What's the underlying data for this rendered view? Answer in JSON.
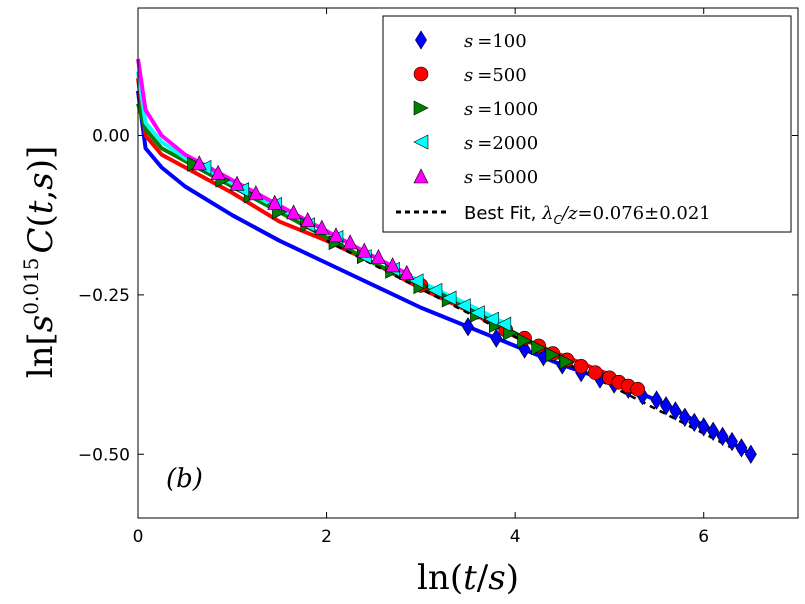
{
  "chart_data": {
    "type": "scatter",
    "title": "",
    "xlabel": "ln(t/s)",
    "ylabel": "ln[s^0.015 C(t,s)]",
    "xlim": [
      0,
      7
    ],
    "ylim": [
      -0.6,
      0.2
    ],
    "xticks": [
      0,
      2,
      4,
      6
    ],
    "yticks": [
      0.0,
      -0.25,
      -0.5
    ],
    "xtick_labels": [
      "0",
      "2",
      "4",
      "6"
    ],
    "ytick_labels": [
      "0.00",
      "−0.25",
      "−0.50"
    ],
    "annotation": "(b)",
    "legend_position": "top-right",
    "series": [
      {
        "name": "s=100",
        "label_var": "s",
        "label_eq": "=100",
        "marker": "diamond",
        "color": "#0000ff",
        "curve_start": 0.07,
        "x": [
          0.08,
          0.25,
          0.5,
          1.0,
          1.5,
          2.0,
          2.5,
          3.0,
          3.5,
          4.0,
          4.5,
          5.0,
          5.5,
          6.0,
          6.5
        ],
        "y": [
          -0.02,
          -0.05,
          -0.08,
          -0.125,
          -0.165,
          -0.2,
          -0.235,
          -0.27,
          -0.3,
          -0.33,
          -0.36,
          -0.385,
          -0.415,
          -0.455,
          -0.5
        ],
        "marker_x": [
          3.5,
          3.8,
          4.1,
          4.3,
          4.5,
          4.7,
          4.9,
          5.05,
          5.2,
          5.35,
          5.5,
          5.6,
          5.7,
          5.8,
          5.9,
          6.0,
          6.1,
          6.2,
          6.3,
          6.4,
          6.5
        ],
        "marker_y": [
          -0.3,
          -0.318,
          -0.335,
          -0.347,
          -0.36,
          -0.372,
          -0.382,
          -0.39,
          -0.398,
          -0.408,
          -0.415,
          -0.424,
          -0.432,
          -0.442,
          -0.45,
          -0.457,
          -0.464,
          -0.472,
          -0.48,
          -0.49,
          -0.5
        ]
      },
      {
        "name": "s=500",
        "label_var": "s",
        "label_eq": "=500",
        "marker": "circle",
        "color": "#ff0000",
        "curve_start": 0.09,
        "x": [
          0.08,
          0.25,
          0.5,
          1.0,
          1.5,
          2.0,
          2.5,
          3.0,
          3.5,
          4.0,
          4.5,
          5.0,
          5.3
        ],
        "y": [
          0.0,
          -0.03,
          -0.05,
          -0.09,
          -0.135,
          -0.165,
          -0.2,
          -0.24,
          -0.275,
          -0.315,
          -0.345,
          -0.375,
          -0.395
        ],
        "marker_x": [
          3.0,
          3.9,
          4.1,
          4.25,
          4.4,
          4.55,
          4.7,
          4.85,
          5.0,
          5.1,
          5.2,
          5.3
        ],
        "marker_y": [
          -0.235,
          -0.305,
          -0.318,
          -0.33,
          -0.342,
          -0.352,
          -0.362,
          -0.372,
          -0.38,
          -0.387,
          -0.393,
          -0.398
        ]
      },
      {
        "name": "s=1000",
        "label_var": "s",
        "label_eq": "=1000",
        "marker": "triangle-right",
        "color": "#008000",
        "curve_start": 0.05,
        "x": [
          0.08,
          0.25,
          0.5,
          1.0,
          1.5,
          2.0,
          2.5,
          3.0,
          3.5,
          4.0,
          4.6
        ],
        "y": [
          0.01,
          -0.02,
          -0.04,
          -0.08,
          -0.12,
          -0.16,
          -0.2,
          -0.235,
          -0.27,
          -0.31,
          -0.36
        ],
        "marker_x": [
          0.6,
          0.9,
          1.2,
          1.5,
          1.8,
          2.1,
          2.4,
          2.7,
          3.0,
          3.3,
          3.6,
          3.8,
          3.95,
          4.1,
          4.25,
          4.4,
          4.55
        ],
        "marker_y": [
          -0.045,
          -0.07,
          -0.095,
          -0.12,
          -0.14,
          -0.168,
          -0.19,
          -0.213,
          -0.237,
          -0.258,
          -0.282,
          -0.298,
          -0.31,
          -0.322,
          -0.333,
          -0.344,
          -0.355
        ]
      },
      {
        "name": "s=2000",
        "label_var": "s",
        "label_eq": "=2000",
        "marker": "triangle-left",
        "color": "#00ffff",
        "curve_start": 0.1,
        "x": [
          0.08,
          0.25,
          0.5,
          1.0,
          1.5,
          2.0,
          2.5,
          3.0,
          3.5,
          3.9
        ],
        "y": [
          0.02,
          -0.01,
          -0.035,
          -0.075,
          -0.115,
          -0.15,
          -0.19,
          -0.23,
          -0.265,
          -0.295
        ],
        "marker_x": [
          0.7,
          1.1,
          1.45,
          1.8,
          2.1,
          2.4,
          2.7,
          2.95,
          3.15,
          3.3,
          3.45,
          3.6,
          3.75,
          3.88
        ],
        "marker_y": [
          -0.05,
          -0.085,
          -0.108,
          -0.14,
          -0.16,
          -0.19,
          -0.21,
          -0.228,
          -0.243,
          -0.255,
          -0.267,
          -0.278,
          -0.288,
          -0.296
        ]
      },
      {
        "name": "s=5000",
        "label_var": "s",
        "label_eq": "=5000",
        "marker": "triangle-up",
        "color": "#ff00ff",
        "curve_start": 0.12,
        "x": [
          0.08,
          0.25,
          0.5,
          1.0,
          1.5,
          2.0,
          2.5,
          2.9
        ],
        "y": [
          0.04,
          0.0,
          -0.03,
          -0.07,
          -0.11,
          -0.15,
          -0.19,
          -0.22
        ],
        "marker_x": [
          0.65,
          0.85,
          1.05,
          1.25,
          1.45,
          1.65,
          1.8,
          1.95,
          2.1,
          2.25,
          2.4,
          2.55,
          2.7,
          2.85
        ],
        "marker_y": [
          -0.043,
          -0.058,
          -0.075,
          -0.09,
          -0.105,
          -0.12,
          -0.132,
          -0.144,
          -0.156,
          -0.167,
          -0.18,
          -0.19,
          -0.203,
          -0.215
        ]
      }
    ],
    "fit": {
      "name": "Best Fit",
      "label_prefix": "Best Fit, ",
      "label_math": "λ",
      "label_sub": "C",
      "label_rest": "/z",
      "label_value": "=0.076±0.021",
      "x": [
        2.0,
        6.5
      ],
      "y": [
        -0.165,
        -0.505
      ],
      "style": "dashed",
      "color": "#000000"
    }
  }
}
